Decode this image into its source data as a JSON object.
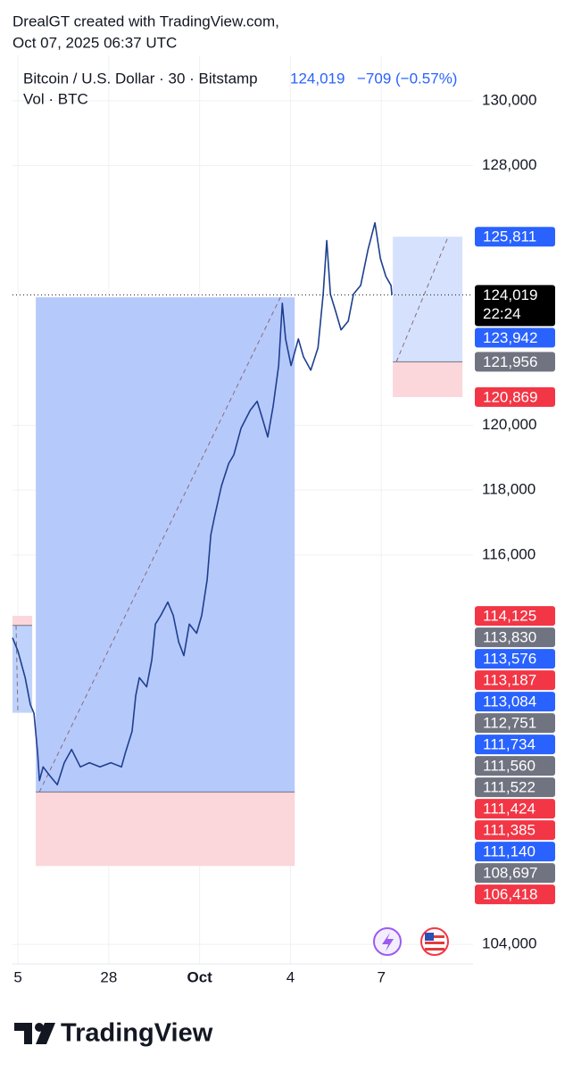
{
  "header": {
    "author": "DrealGT created with TradingView.com,",
    "timestamp": "Oct 07, 2025 06:37 UTC"
  },
  "chart_data": {
    "type": "line",
    "legend": {
      "symbol": "Bitcoin / U.S. Dollar · 30 · Bitstamp",
      "last": "124,019",
      "change": "−709 (−0.57%)",
      "volume": "Vol · BTC"
    },
    "series": [
      {
        "name": "BTCUSD",
        "color": "#1e3f8f",
        "x": [
          -0.18,
          0,
          0.24,
          0.41,
          0.53,
          0.65,
          0.71,
          0.83,
          1.06,
          1.3,
          1.53,
          1.77,
          2.06,
          2.36,
          2.71,
          3.07,
          3.42,
          3.54,
          3.77,
          3.89,
          4.01,
          4.25,
          4.42,
          4.54,
          4.72,
          4.95,
          5.13,
          5.31,
          5.48,
          5.66,
          5.9,
          6.07,
          6.25,
          6.37,
          6.49,
          6.72,
          6.96,
          7.13,
          7.37,
          7.67,
          7.9,
          8.08,
          8.25,
          8.43,
          8.61,
          8.73,
          8.84,
          9.02,
          9.26,
          9.43,
          9.67,
          9.91,
          10.08,
          10.2,
          10.32,
          10.5,
          10.67,
          10.91,
          11.08,
          11.32,
          11.56,
          11.79,
          11.97,
          12.15,
          12.32,
          12.35
        ],
        "values": [
          113450,
          113040,
          112220,
          111390,
          111120,
          109880,
          109050,
          109470,
          109190,
          108920,
          109600,
          110010,
          109470,
          109600,
          109470,
          109600,
          109470,
          109880,
          110570,
          111670,
          112220,
          111940,
          112770,
          113870,
          114140,
          114550,
          114140,
          113320,
          112900,
          113870,
          113590,
          114140,
          115240,
          116620,
          117170,
          118130,
          118820,
          119090,
          119910,
          120460,
          120740,
          120190,
          119640,
          120600,
          121840,
          123760,
          122660,
          121840,
          122660,
          122110,
          121700,
          122390,
          124040,
          125690,
          124040,
          123490,
          122940,
          123210,
          124040,
          124310,
          125410,
          126240,
          125140,
          124590,
          124310,
          124019
        ]
      }
    ],
    "xlim": [
      -0.18,
      15.03
    ],
    "xticks": [
      {
        "value": 0,
        "label": "5"
      },
      {
        "value": 3,
        "label": "28"
      },
      {
        "value": 6,
        "label": "Oct"
      },
      {
        "value": 9,
        "label": "4"
      },
      {
        "value": 12,
        "label": "7"
      }
    ],
    "ylim": [
      103400,
      131400
    ],
    "yticks": [
      {
        "value": 104000,
        "label": "104,000"
      },
      {
        "value": 116000,
        "label": "116,000"
      },
      {
        "value": 118000,
        "label": "118,000"
      },
      {
        "value": 120000,
        "label": "120,000"
      },
      {
        "value": 128000,
        "label": "128,000"
      },
      {
        "value": 130000,
        "label": "130,000"
      }
    ],
    "grid": true,
    "positions": [
      {
        "x": [
          -0.18,
          0.47
        ],
        "entry": 113830,
        "target": 111140,
        "stop": 114125,
        "color": "#bcd0fb"
      },
      {
        "x": [
          0.59,
          9.14
        ],
        "entry": 108697,
        "target": 123942,
        "stop": 106418,
        "color": "#b2c6fb"
      },
      {
        "x": [
          12.38,
          14.68
        ],
        "entry": 121956,
        "target": 125811,
        "stop": 120869,
        "color": "#d4e0fd"
      }
    ],
    "price_labels": [
      {
        "value": 125811,
        "label": "125,811",
        "color": "#2962ff"
      },
      {
        "value": 124019,
        "label": "124,019",
        "sublabel": "22:24",
        "color": "#000000"
      },
      {
        "value": 123942,
        "label": "123,942",
        "color": "#2962ff"
      },
      {
        "value": 121956,
        "label": "121,956",
        "color": "#707380"
      },
      {
        "value": 120869,
        "label": "120,869",
        "color": "#f23645"
      },
      {
        "value": 114125,
        "label": "114,125",
        "color": "#f23645"
      },
      {
        "value": 113830,
        "label": "113,830",
        "color": "#707380"
      },
      {
        "value": 113576,
        "label": "113,576",
        "color": "#2962ff"
      },
      {
        "value": 113187,
        "label": "113,187",
        "color": "#f23645"
      },
      {
        "value": 113084,
        "label": "113,084",
        "color": "#2962ff"
      },
      {
        "value": 112751,
        "label": "112,751",
        "color": "#707380"
      },
      {
        "value": 111734,
        "label": "111,734",
        "color": "#2962ff"
      },
      {
        "value": 111560,
        "label": "111,560",
        "color": "#707380"
      },
      {
        "value": 111522,
        "label": "111,522",
        "color": "#707380"
      },
      {
        "value": 111424,
        "label": "111,424",
        "color": "#f23645"
      },
      {
        "value": 111385,
        "label": "111,385",
        "color": "#f23645"
      },
      {
        "value": 111140,
        "label": "111,140",
        "color": "#2962ff"
      },
      {
        "value": 108697,
        "label": "108,697",
        "color": "#707380"
      },
      {
        "value": 106418,
        "label": "106,418",
        "color": "#f23645"
      }
    ]
  },
  "footer": {
    "brand": "TradingView"
  }
}
